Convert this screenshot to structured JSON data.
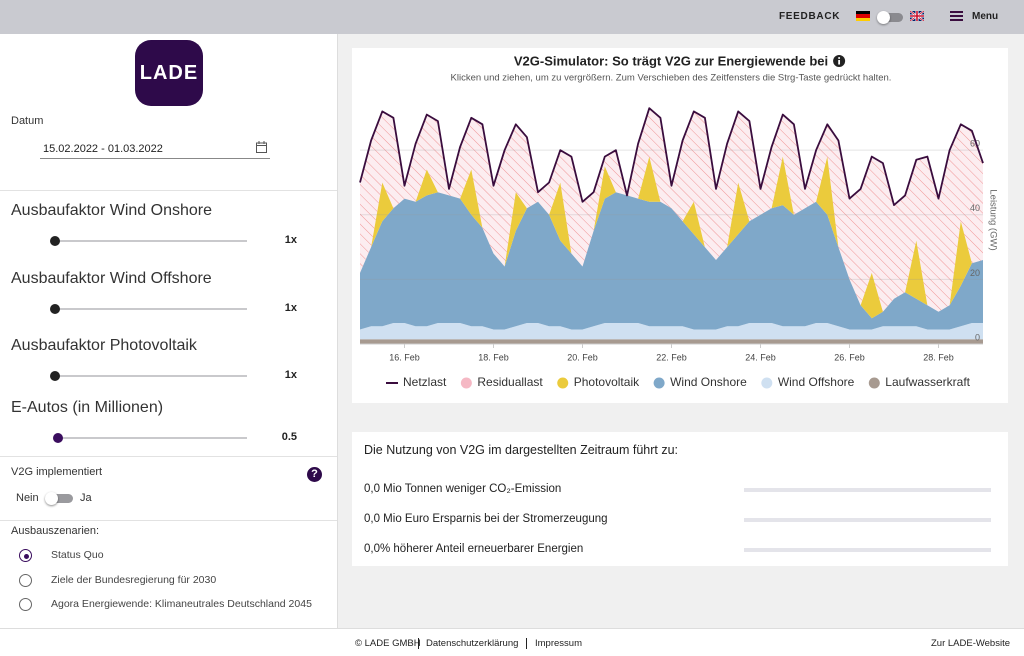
{
  "header": {
    "feedback": "FEEDBACK",
    "menu": "Menu"
  },
  "sidebar": {
    "logo": "LADE",
    "date": {
      "label": "Datum",
      "value": "15.02.2022 - 01.03.2022"
    },
    "sliders": [
      {
        "label": "Ausbaufaktor Wind Onshore",
        "value": "1x"
      },
      {
        "label": "Ausbaufaktor Wind Offshore",
        "value": "1x"
      },
      {
        "label": "Ausbaufaktor Photovoltaik",
        "value": "1x"
      },
      {
        "label": "E-Autos (in Millionen)",
        "value": "0.5"
      }
    ],
    "v2g": {
      "label": "V2G implementiert",
      "help": "?",
      "off": "Nein",
      "on": "Ja"
    },
    "scenarios": {
      "label": "Ausbauszenarien:",
      "selected": 0,
      "options": [
        "Status Quo",
        "Ziele der Bundesregierung für 2030",
        "Agora Energiewende: Klimaneutrales Deutschland 2045"
      ]
    }
  },
  "chart_data": {
    "type": "area",
    "title": "V2G-Simulator: So trägt V2G zur Energiewende bei",
    "subtitle": "Klicken und ziehen, um zu vergrößern. Zum Verschieben des Zeitfensters die Strg-Taste gedrückt halten.",
    "y_label": "Leistung (GW)",
    "x": [
      15,
      15.25,
      15.5,
      15.75,
      16,
      16.25,
      16.5,
      16.75,
      17,
      17.25,
      17.5,
      17.75,
      18,
      18.25,
      18.5,
      18.75,
      19,
      19.25,
      19.5,
      19.75,
      20,
      20.25,
      20.5,
      20.75,
      21,
      21.25,
      21.5,
      21.75,
      22,
      22.25,
      22.5,
      22.75,
      23,
      23.25,
      23.5,
      23.75,
      24,
      24.25,
      24.5,
      24.75,
      25,
      25.25,
      25.5,
      25.75,
      26,
      26.25,
      26.5,
      26.75,
      27,
      27.25,
      27.5,
      27.75,
      28,
      28.25,
      28.5,
      28.75,
      29
    ],
    "xlim": [
      15,
      29
    ],
    "xticks": [
      {
        "value": 16,
        "label": "16. Feb"
      },
      {
        "value": 18,
        "label": "18. Feb"
      },
      {
        "value": 20,
        "label": "20. Feb"
      },
      {
        "value": 22,
        "label": "22. Feb"
      },
      {
        "value": 24,
        "label": "24. Feb"
      },
      {
        "value": 26,
        "label": "26. Feb"
      },
      {
        "value": 28,
        "label": "28. Feb"
      }
    ],
    "ylim": [
      0,
      78
    ],
    "yticks": [
      0,
      20,
      40,
      60
    ],
    "grid": true,
    "legend": "bottom",
    "series": [
      {
        "name": "Netzlast",
        "type": "line",
        "color": "#3a0d3e",
        "values": [
          50,
          63,
          72,
          70,
          49,
          62,
          71,
          69,
          48,
          61,
          70,
          68,
          49,
          60,
          68,
          64,
          47,
          50,
          60,
          58,
          44,
          47,
          58,
          60,
          46,
          62,
          73,
          70,
          49,
          63,
          72,
          70,
          48,
          62,
          72,
          69,
          48,
          61,
          71,
          68,
          48,
          60,
          68,
          63,
          45,
          48,
          58,
          56,
          43,
          46,
          57,
          58,
          45,
          60,
          68,
          66,
          56
        ]
      },
      {
        "name": "Residuallast",
        "color": "#f5b8c4",
        "pattern": "hatch",
        "values": [
          28,
          33,
          22,
          28,
          4,
          18,
          17,
          22,
          2,
          16,
          16,
          32,
          21,
          36,
          21,
          22,
          3,
          10,
          10,
          30,
          20,
          12,
          3,
          13,
          0,
          17,
          15,
          26,
          7,
          25,
          28,
          40,
          22,
          32,
          22,
          31,
          8,
          19,
          13,
          28,
          6,
          16,
          10,
          33,
          25,
          36,
          36,
          46,
          29,
          30,
          25,
          46,
          35,
          48,
          30,
          41,
          30
        ]
      },
      {
        "name": "Photovoltaik",
        "color": "#ebcb3c",
        "values": [
          0,
          0,
          12,
          0,
          0,
          0,
          8,
          0,
          0,
          0,
          14,
          0,
          0,
          0,
          12,
          0,
          0,
          0,
          18,
          0,
          0,
          0,
          10,
          0,
          0,
          0,
          14,
          0,
          0,
          0,
          10,
          0,
          0,
          0,
          16,
          0,
          0,
          0,
          15,
          0,
          0,
          0,
          18,
          0,
          0,
          0,
          14,
          0,
          0,
          0,
          18,
          0,
          0,
          0,
          20,
          0,
          0
        ]
      },
      {
        "name": "Wind Onshore",
        "color": "#7fa8c9",
        "values": [
          17.5,
          24.5,
          32.5,
          35.5,
          38.5,
          38.5,
          40.5,
          40.5,
          39.5,
          38.5,
          34.5,
          30.5,
          23.5,
          19.5,
          29.5,
          35.5,
          37.5,
          34.5,
          26.5,
          23.5,
          19.5,
          29.5,
          38.5,
          40.5,
          39.5,
          38.5,
          38.5,
          38.5,
          36.5,
          32.5,
          29.5,
          25.5,
          21.5,
          24.5,
          28.5,
          31.5,
          33.5,
          35.5,
          37.5,
          34.5,
          36.5,
          37.5,
          33.5,
          24.5,
          15.5,
          7.5,
          3.5,
          4.5,
          8.5,
          10.5,
          8.5,
          7.5,
          5.5,
          7.5,
          12.5,
          18.5,
          19.5
        ]
      },
      {
        "name": "Wind Offshore",
        "color": "#cfe0f1",
        "values": [
          3,
          4,
          4,
          5,
          5,
          4,
          4,
          5,
          5,
          5,
          4,
          4,
          3,
          3,
          4,
          5,
          5,
          4,
          4,
          3,
          3,
          4,
          5,
          5,
          5,
          5,
          4,
          4,
          4,
          4,
          3,
          3,
          3,
          4,
          4,
          5,
          5,
          5,
          4,
          4,
          4,
          5,
          5,
          4,
          3,
          3,
          3,
          4,
          4,
          4,
          4,
          3,
          3,
          3,
          4,
          5,
          5
        ]
      },
      {
        "name": "Laufwasserkraft",
        "color": "#a79a90",
        "values": [
          1.5,
          1.5,
          1.5,
          1.5,
          1.5,
          1.5,
          1.5,
          1.5,
          1.5,
          1.5,
          1.5,
          1.5,
          1.5,
          1.5,
          1.5,
          1.5,
          1.5,
          1.5,
          1.5,
          1.5,
          1.5,
          1.5,
          1.5,
          1.5,
          1.5,
          1.5,
          1.5,
          1.5,
          1.5,
          1.5,
          1.5,
          1.5,
          1.5,
          1.5,
          1.5,
          1.5,
          1.5,
          1.5,
          1.5,
          1.5,
          1.5,
          1.5,
          1.5,
          1.5,
          1.5,
          1.5,
          1.5,
          1.5,
          1.5,
          1.5,
          1.5,
          1.5,
          1.5,
          1.5,
          1.5,
          1.5,
          1.5
        ]
      }
    ]
  },
  "results": {
    "heading": "Die Nutzung von V2G im dargestellten Zeitraum führt zu:",
    "rows": [
      "0,0 Mio Tonnen weniger CO₂-Emission",
      "0,0 Mio Euro Ersparnis bei der Stromerzeugung",
      "0,0% höherer Anteil erneuerbarer Energien"
    ]
  },
  "footer": {
    "copyright": "© LADE GMBH",
    "privacy": "Datenschutzerklärung",
    "imprint": "Impressum",
    "website": "Zur LADE-Website"
  }
}
